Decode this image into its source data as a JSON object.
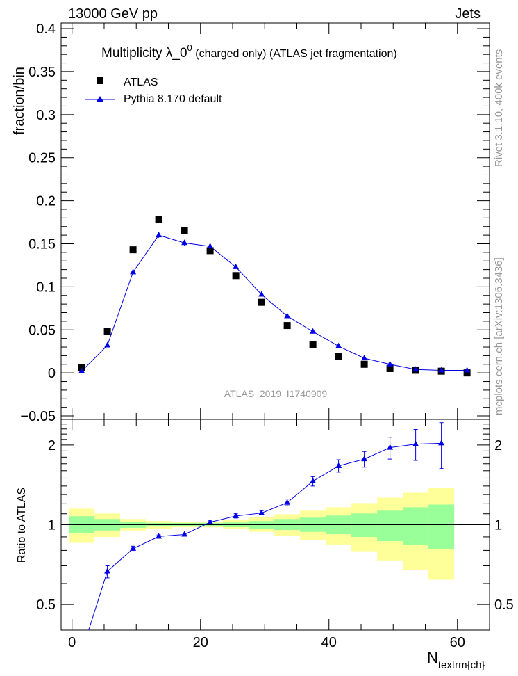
{
  "header": {
    "left": "13000 GeV pp",
    "right": "Jets"
  },
  "side_labels": {
    "rivet": "Rivet 3.1.10,  400k events",
    "mcplots": "mcplots.cern.ch [arXiv:1306.3436]"
  },
  "watermark": "ATLAS_2019_I1740909",
  "colors": {
    "data": "#000000",
    "mc": "#0000e6",
    "band_inner": "#99ff99",
    "band_outer": "#ffff99"
  },
  "chart_data": [
    {
      "type": "scatter",
      "title_main": "Multiplicity  λ_0",
      "title_sup": "0",
      "title_rest": "(charged only) (ATLAS jet fragmentation)",
      "ylabel": "fraction/bin",
      "xlim": [
        -1.7,
        65
      ],
      "ylim": [
        -0.054,
        0.4065
      ],
      "yticks": [
        -0.05,
        0,
        0.05,
        0.1,
        0.15,
        0.2,
        0.25,
        0.3,
        0.35,
        0.4
      ],
      "ytick_labels": [
        "−0.05",
        "0",
        "0.05",
        "0.1",
        "0.15",
        "0.2",
        "0.25",
        "0.3",
        "0.35",
        "0.4"
      ],
      "legend": [
        "ATLAS",
        "Pythia 8.170 default"
      ],
      "legend_placement": "top-left",
      "x": [
        1.5,
        5.5,
        9.5,
        13.5,
        17.5,
        21.5,
        25.5,
        29.5,
        33.5,
        37.5,
        41.5,
        45.5,
        49.5,
        53.5,
        57.5,
        61.5
      ],
      "series": [
        {
          "name": "ATLAS",
          "marker": "square",
          "values": [
            0.006,
            0.048,
            0.143,
            0.178,
            0.165,
            0.142,
            0.113,
            0.082,
            0.055,
            0.033,
            0.019,
            0.01,
            0.005,
            0.003,
            0.002,
            0.0
          ]
        },
        {
          "name": "Pythia 8.170 default",
          "marker": "triangle",
          "values": [
            0.002,
            0.032,
            0.117,
            0.16,
            0.151,
            0.147,
            0.123,
            0.091,
            0.066,
            0.048,
            0.031,
            0.017,
            0.01,
            0.004,
            0.003,
            0.003
          ],
          "errors": [
            0.001,
            0.002,
            0.002,
            0.003,
            0.003,
            0.003,
            0.002,
            0.002,
            0.001,
            0.001,
            0.001,
            0.001,
            0.001,
            0.001,
            0.001,
            0.001
          ]
        }
      ]
    },
    {
      "type": "scatter",
      "ylabel": "Ratio to ATLAS",
      "xlabel_main": "N",
      "xlabel_sub": "textrm{ch}",
      "yscale": "log",
      "ylim": [
        0.4,
        2.5
      ],
      "yticks": [
        0.5,
        1,
        2
      ],
      "ytick_labels": [
        "0.5",
        "1",
        "2"
      ],
      "xticks": [
        0,
        20,
        40,
        60
      ],
      "xtick_labels": [
        "0",
        "20",
        "40",
        "60"
      ],
      "bin_edges": [
        -0.5,
        3.5,
        7.5,
        11.5,
        15.5,
        19.5,
        23.5,
        27.5,
        31.5,
        35.5,
        39.5,
        43.5,
        47.5,
        51.5,
        55.5,
        59.5
      ],
      "band_inner": [
        [
          0.929,
          1.077
        ],
        [
          0.951,
          1.051
        ],
        [
          0.974,
          1.026
        ],
        [
          0.984,
          1.016
        ],
        [
          0.986,
          1.016
        ],
        [
          0.984,
          1.016
        ],
        [
          0.98,
          1.02
        ],
        [
          0.967,
          1.033
        ],
        [
          0.955,
          1.051
        ],
        [
          0.94,
          1.064
        ],
        [
          0.921,
          1.083
        ],
        [
          0.899,
          1.103
        ],
        [
          0.867,
          1.13
        ],
        [
          0.837,
          1.164
        ],
        [
          0.812,
          1.192
        ]
      ],
      "band_outer": [
        [
          0.854,
          1.15
        ],
        [
          0.899,
          1.103
        ],
        [
          0.951,
          1.051
        ],
        [
          0.967,
          1.033
        ],
        [
          0.978,
          1.026
        ],
        [
          0.978,
          1.022
        ],
        [
          0.963,
          1.047
        ],
        [
          0.94,
          1.073
        ],
        [
          0.906,
          1.096
        ],
        [
          0.878,
          1.13
        ],
        [
          0.837,
          1.164
        ],
        [
          0.794,
          1.207
        ],
        [
          0.733,
          1.266
        ],
        [
          0.674,
          1.321
        ],
        [
          0.62,
          1.378
        ]
      ],
      "x": [
        1.5,
        5.5,
        9.5,
        13.5,
        17.5,
        21.5,
        25.5,
        29.5,
        33.5,
        37.5,
        41.5,
        45.5,
        49.5,
        53.5,
        57.5
      ],
      "ratio": [
        0.33,
        0.667,
        0.812,
        0.903,
        0.919,
        1.022,
        1.079,
        1.107,
        1.212,
        1.46,
        1.667,
        1.77,
        1.956,
        2.016,
        2.03
      ],
      "ratio_err_lo": [
        0.3,
        0.63,
        0.79,
        0.89,
        0.91,
        1.01,
        1.06,
        1.09,
        1.18,
        1.4,
        1.58,
        1.65,
        1.77,
        1.75,
        1.63
      ],
      "ratio_err_hi": [
        0.36,
        0.7,
        0.83,
        0.915,
        0.93,
        1.035,
        1.1,
        1.13,
        1.25,
        1.52,
        1.76,
        1.89,
        2.14,
        2.29,
        2.43
      ]
    }
  ]
}
